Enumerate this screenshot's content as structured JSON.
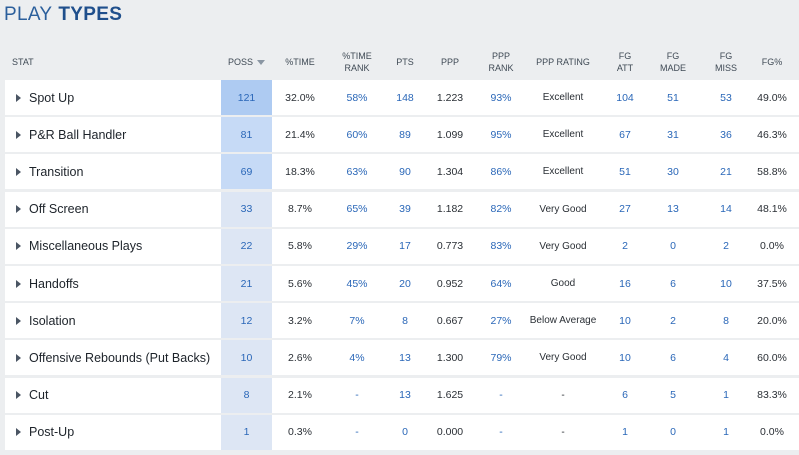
{
  "title": {
    "part1": "PLAY",
    "part2": "TYPES"
  },
  "columns": [
    "STAT",
    "POSS",
    "%TIME",
    "%TIME\nRANK",
    "PTS",
    "PPP",
    "PPP\nRANK",
    "PPP RATING",
    "FG\nATT",
    "FG\nMADE",
    "FG\nMISS",
    "FG%"
  ],
  "sort_icon": "sort-desc-icon",
  "colors": {
    "poss_dark": "#aecbf2",
    "poss_mid": "#c6daf6",
    "poss_light": "#dde6f4",
    "link_blue": "#2a67b8"
  },
  "rows": [
    {
      "name": "Spot Up",
      "poss": "121",
      "time": "32.0%",
      "time_rank": "58%",
      "pts": "148",
      "ppp": "1.223",
      "ppp_rank": "93%",
      "rating": "Excellent",
      "fga": "104",
      "fgm": "51",
      "fgmiss": "53",
      "fgpct": "49.0%"
    },
    {
      "name": "P&R Ball Handler",
      "poss": "81",
      "time": "21.4%",
      "time_rank": "60%",
      "pts": "89",
      "ppp": "1.099",
      "ppp_rank": "95%",
      "rating": "Excellent",
      "fga": "67",
      "fgm": "31",
      "fgmiss": "36",
      "fgpct": "46.3%"
    },
    {
      "name": "Transition",
      "poss": "69",
      "time": "18.3%",
      "time_rank": "63%",
      "pts": "90",
      "ppp": "1.304",
      "ppp_rank": "86%",
      "rating": "Excellent",
      "fga": "51",
      "fgm": "30",
      "fgmiss": "21",
      "fgpct": "58.8%"
    },
    {
      "name": "Off Screen",
      "poss": "33",
      "time": "8.7%",
      "time_rank": "65%",
      "pts": "39",
      "ppp": "1.182",
      "ppp_rank": "82%",
      "rating": "Very Good",
      "fga": "27",
      "fgm": "13",
      "fgmiss": "14",
      "fgpct": "48.1%"
    },
    {
      "name": "Miscellaneous Plays",
      "poss": "22",
      "time": "5.8%",
      "time_rank": "29%",
      "pts": "17",
      "ppp": "0.773",
      "ppp_rank": "83%",
      "rating": "Very Good",
      "fga": "2",
      "fgm": "0",
      "fgmiss": "2",
      "fgpct": "0.0%"
    },
    {
      "name": "Handoffs",
      "poss": "21",
      "time": "5.6%",
      "time_rank": "45%",
      "pts": "20",
      "ppp": "0.952",
      "ppp_rank": "64%",
      "rating": "Good",
      "fga": "16",
      "fgm": "6",
      "fgmiss": "10",
      "fgpct": "37.5%"
    },
    {
      "name": "Isolation",
      "poss": "12",
      "time": "3.2%",
      "time_rank": "7%",
      "pts": "8",
      "ppp": "0.667",
      "ppp_rank": "27%",
      "rating": "Below Average",
      "fga": "10",
      "fgm": "2",
      "fgmiss": "8",
      "fgpct": "20.0%"
    },
    {
      "name": "Offensive Rebounds (Put Backs)",
      "poss": "10",
      "time": "2.6%",
      "time_rank": "4%",
      "pts": "13",
      "ppp": "1.300",
      "ppp_rank": "79%",
      "rating": "Very Good",
      "fga": "10",
      "fgm": "6",
      "fgmiss": "4",
      "fgpct": "60.0%"
    },
    {
      "name": "Cut",
      "poss": "8",
      "time": "2.1%",
      "time_rank": "-",
      "pts": "13",
      "ppp": "1.625",
      "ppp_rank": "-",
      "rating": "-",
      "fga": "6",
      "fgm": "5",
      "fgmiss": "1",
      "fgpct": "83.3%"
    },
    {
      "name": "Post-Up",
      "poss": "1",
      "time": "0.3%",
      "time_rank": "-",
      "pts": "0",
      "ppp": "0.000",
      "ppp_rank": "-",
      "rating": "-",
      "fga": "1",
      "fgm": "0",
      "fgmiss": "1",
      "fgpct": "0.0%"
    }
  ]
}
